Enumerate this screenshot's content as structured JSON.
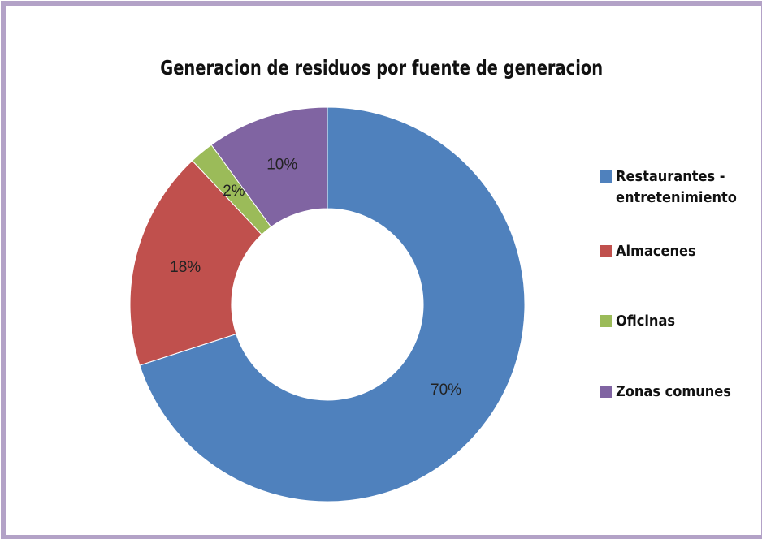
{
  "chart_data": {
    "type": "donut",
    "title": "Generacion de residuos por fuente de generacion",
    "categories": [
      "Restaurantes - entretenimiento",
      "Almacenes",
      "Oficinas",
      "Zonas comunes"
    ],
    "values": [
      70,
      18,
      2,
      10
    ],
    "value_labels": [
      "70%",
      "18%",
      "2%",
      "10%"
    ],
    "colors": [
      "#4f81bd",
      "#c0504d",
      "#9bbb59",
      "#8064a2"
    ],
    "legend": "right"
  }
}
